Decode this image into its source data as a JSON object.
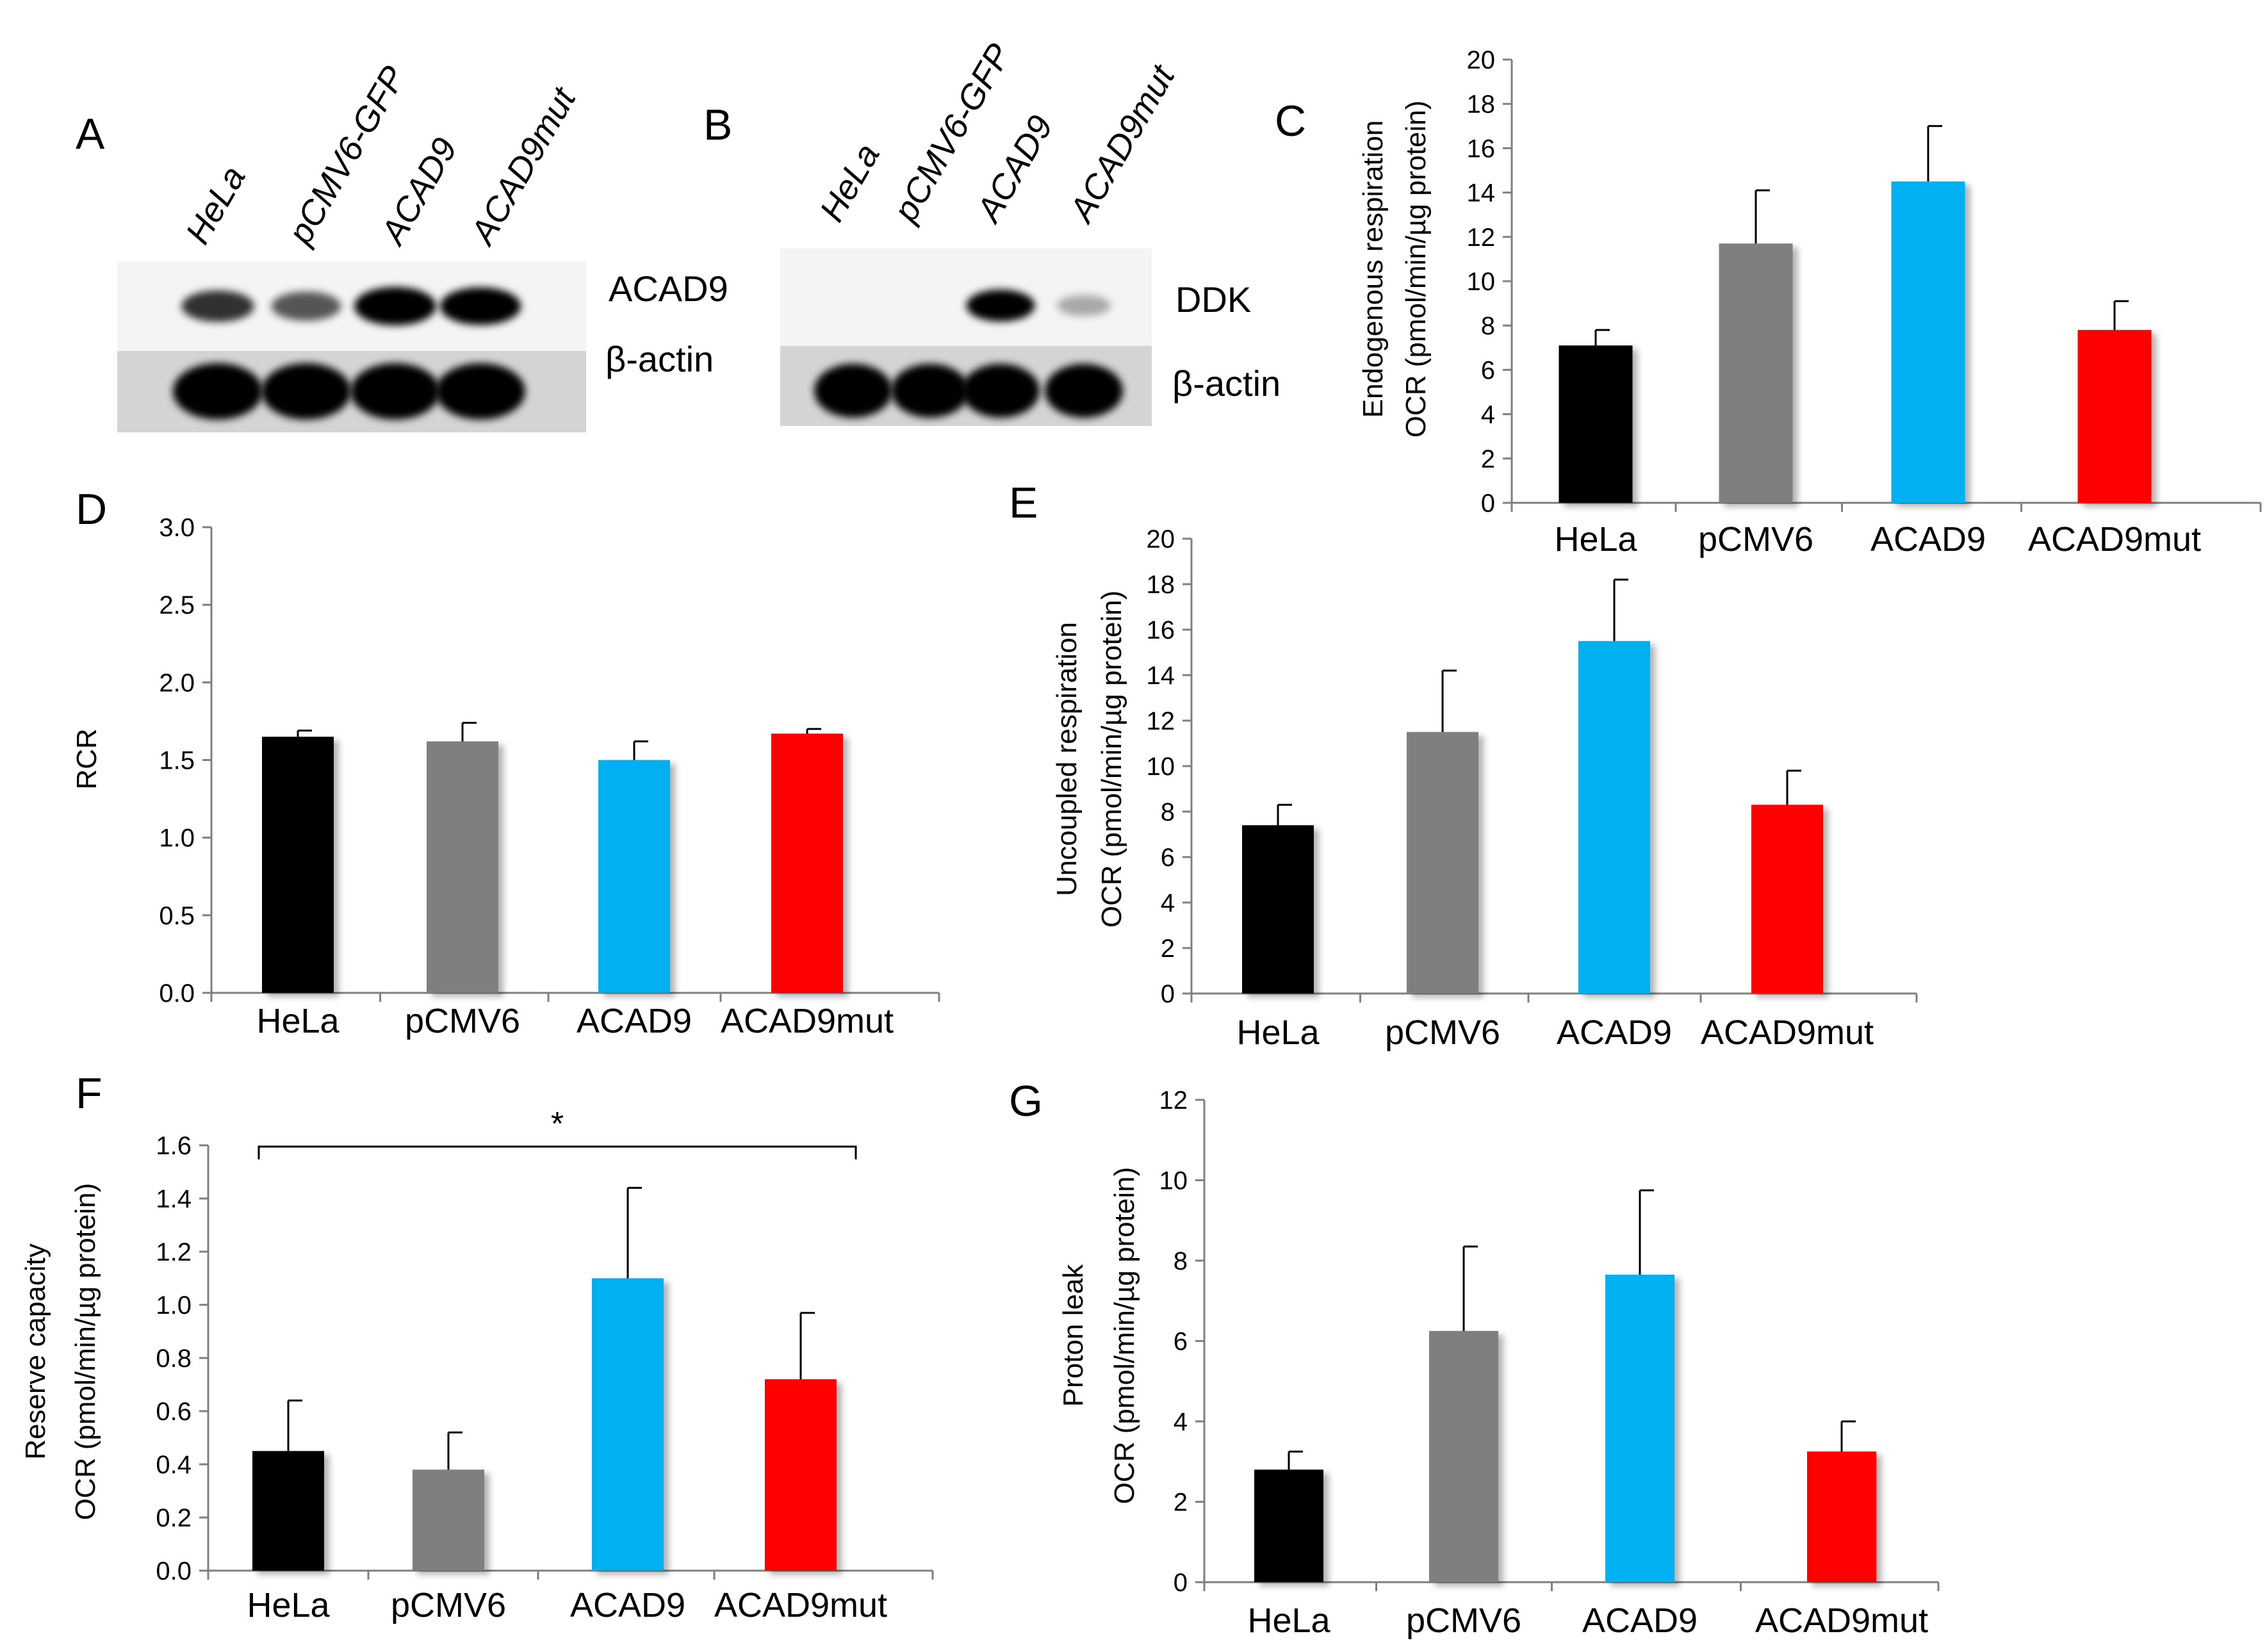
{
  "colors": {
    "HeLa": "#000000",
    "pCMV6": "#7f7f7f",
    "ACAD9": "#00b0f0",
    "ACAD9mut": "#ff0000"
  },
  "blots": [
    {
      "panel": "A",
      "lanes": [
        "HeLa",
        "pCMV6-GFP",
        "ACAD9",
        "ACAD9mut"
      ],
      "rows": [
        "ACAD9",
        "β-actin"
      ],
      "intensity_top": [
        0.55,
        0.4,
        1.0,
        0.95
      ],
      "intensity_bottom": [
        1.0,
        1.0,
        1.0,
        1.0
      ]
    },
    {
      "panel": "B",
      "lanes": [
        "HeLa",
        "pCMV6-GFP",
        "ACAD9",
        "ACAD9mut"
      ],
      "rows": [
        "DDK",
        "β-actin"
      ],
      "intensity_top": [
        0.0,
        0.0,
        0.9,
        0.06
      ],
      "intensity_bottom": [
        1.0,
        1.0,
        1.0,
        1.0
      ]
    }
  ],
  "chart_data": [
    {
      "panel": "C",
      "type": "bar",
      "categories": [
        "HeLa",
        "pCMV6",
        "ACAD9",
        "ACAD9mut"
      ],
      "values": [
        7.1,
        11.7,
        14.5,
        7.8
      ],
      "errors": [
        0.7,
        2.4,
        2.5,
        1.3
      ],
      "ylabel_line1": "Endogenous  respiration",
      "ylabel_line2": "OCR (pmol/min/µg protein)",
      "ylim": [
        0,
        20
      ],
      "yticks": [
        "0",
        "2",
        "4",
        "6",
        "8",
        "10",
        "12",
        "14",
        "16",
        "18",
        "20"
      ]
    },
    {
      "panel": "D",
      "type": "bar",
      "categories": [
        "HeLa",
        "pCMV6",
        "ACAD9",
        "ACAD9mut"
      ],
      "values": [
        1.65,
        1.62,
        1.5,
        1.67
      ],
      "errors": [
        0.04,
        0.12,
        0.12,
        0.03
      ],
      "ylabel_line1": "RCR",
      "ylabel_line2": "",
      "ylim": [
        0,
        3
      ],
      "yticks": [
        "0.0",
        "0.5",
        "1.0",
        "1.5",
        "2.0",
        "2.5",
        "3.0"
      ]
    },
    {
      "panel": "E",
      "type": "bar",
      "categories": [
        "HeLa",
        "pCMV6",
        "ACAD9",
        "ACAD9mut"
      ],
      "values": [
        7.4,
        11.5,
        15.5,
        8.3
      ],
      "errors": [
        0.9,
        2.7,
        2.7,
        1.5
      ],
      "ylabel_line1": "Uncoupled respiration",
      "ylabel_line2": "OCR (pmol/min/µg protein)",
      "ylim": [
        0,
        20
      ],
      "yticks": [
        "0",
        "2",
        "4",
        "6",
        "8",
        "10",
        "12",
        "14",
        "16",
        "18",
        "20"
      ]
    },
    {
      "panel": "F",
      "type": "bar",
      "categories": [
        "HeLa",
        "pCMV6",
        "ACAD9",
        "ACAD9mut"
      ],
      "values": [
        0.45,
        0.38,
        1.1,
        0.72
      ],
      "errors": [
        0.19,
        0.14,
        0.34,
        0.25
      ],
      "ylabel_line1": "Reserve capacity",
      "ylabel_line2": "OCR (pmol/min/µg protein)",
      "ylim": [
        0,
        1.6
      ],
      "yticks": [
        "0.0",
        "0.2",
        "0.4",
        "0.6",
        "0.8",
        "1.0",
        "1.2",
        "1.4",
        "1.6"
      ],
      "significance": {
        "from": 0,
        "to": 3,
        "label": "*"
      }
    },
    {
      "panel": "G",
      "type": "bar",
      "categories": [
        "HeLa",
        "pCMV6",
        "ACAD9",
        "ACAD9mut"
      ],
      "values": [
        2.8,
        6.25,
        7.65,
        3.25
      ],
      "errors": [
        0.45,
        2.1,
        2.1,
        0.75
      ],
      "ylabel_line1": "Proton leak",
      "ylabel_line2": "OCR (pmol/min/µg protein)",
      "ylim": [
        0,
        12
      ],
      "yticks": [
        "0",
        "2",
        "4",
        "6",
        "8",
        "10",
        "12"
      ]
    }
  ]
}
